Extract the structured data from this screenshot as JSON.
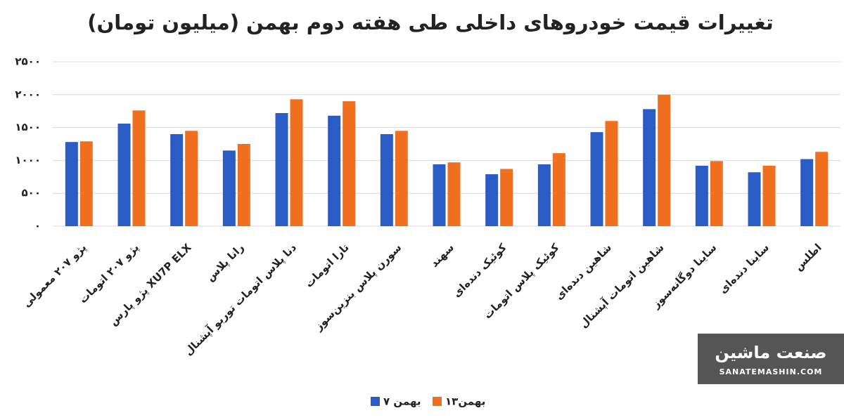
{
  "chart_data": {
    "type": "bar",
    "title": "تغییرات قیمت خودروهای داخلی طی هفته دوم بهمن (میلیون تومان)",
    "categories": [
      "پژو ۲۰۷ معمولی",
      "پژو ۲۰۷ اتومات",
      "پژو پارس XU7P ELX",
      "رانا پلاس",
      "دنا پلاس اتومات توربو آپشنال",
      "تارا اتومات",
      "سورن پلاس بنزین‌سوز",
      "سهند",
      "کوئیک دنده‌ای",
      "کوئیک پلاس اتومات",
      "شاهین دنده‌ای",
      "شاهین اتومات آپشنال",
      "ساینا دوگانه‌سوز",
      "ساینا دنده‌ای",
      "اطلس"
    ],
    "series": [
      {
        "name": "۷ بهمن",
        "color": "#2a5cc5",
        "values": [
          1280,
          1560,
          1400,
          1150,
          1720,
          1680,
          1400,
          940,
          790,
          940,
          1430,
          1780,
          920,
          820,
          1020
        ]
      },
      {
        "name": "۱۳بهمن",
        "color": "#f07020",
        "values": [
          1290,
          1760,
          1450,
          1250,
          1930,
          1900,
          1450,
          970,
          870,
          1110,
          1600,
          2000,
          990,
          920,
          1130
        ]
      }
    ],
    "ylim": [
      0,
      2500
    ],
    "yticks": [
      {
        "value": 0,
        "label": "۰"
      },
      {
        "value": 500,
        "label": "۵۰۰"
      },
      {
        "value": 1000,
        "label": "۱۰۰۰"
      },
      {
        "value": 1500,
        "label": "۱۵۰۰"
      },
      {
        "value": 2000,
        "label": "۲۰۰۰"
      },
      {
        "value": 2500,
        "label": "۲۵۰۰"
      }
    ],
    "grid": true
  },
  "watermark": {
    "brand": "صنعت ماشین",
    "site": "SANATEMASHIN.COM"
  }
}
